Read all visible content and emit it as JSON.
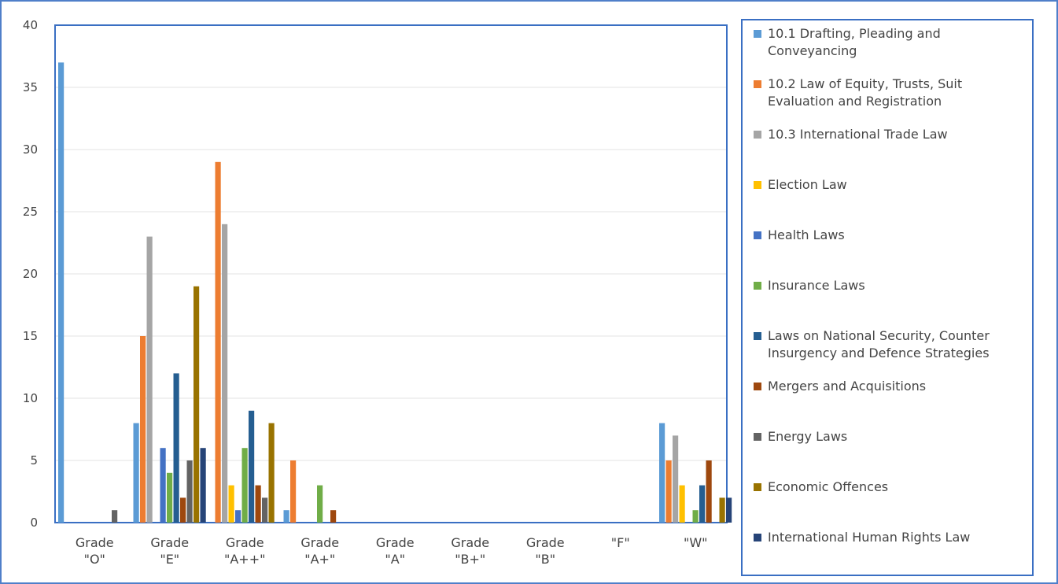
{
  "chart_data": {
    "type": "bar",
    "ylim": [
      0,
      40
    ],
    "yticks": [
      0,
      5,
      10,
      15,
      20,
      25,
      30,
      35,
      40
    ],
    "grid": true,
    "legend_position": "right",
    "categories": [
      [
        "Grade",
        "\"O\""
      ],
      [
        "Grade",
        "\"E\""
      ],
      [
        "Grade",
        "\"A++\""
      ],
      [
        "Grade",
        "\"A+\""
      ],
      [
        "Grade",
        "\"A\""
      ],
      [
        "Grade",
        "\"B+\""
      ],
      [
        "Grade",
        "\"B\""
      ],
      [
        "\"F\""
      ],
      [
        "\"W\""
      ]
    ],
    "series": [
      {
        "name": "10.1 Drafting, Pleading and Conveyancing",
        "color": "#5b9bd5",
        "values": [
          37,
          8,
          0,
          1,
          0,
          0,
          0,
          0,
          8
        ]
      },
      {
        "name": "10.2 Law of Equity, Trusts, Suit Evaluation and Registration",
        "color": "#ed7d31",
        "values": [
          0,
          15,
          29,
          5,
          0,
          0,
          0,
          0,
          5
        ]
      },
      {
        "name": "10.3 International Trade Law",
        "color": "#a5a5a5",
        "values": [
          0,
          23,
          24,
          0,
          0,
          0,
          0,
          0,
          7
        ]
      },
      {
        "name": "Election Law",
        "color": "#ffc000",
        "values": [
          0,
          0,
          3,
          0,
          0,
          0,
          0,
          0,
          3
        ]
      },
      {
        "name": "Health Laws",
        "color": "#4472c4",
        "values": [
          0,
          6,
          1,
          0,
          0,
          0,
          0,
          0,
          0
        ]
      },
      {
        "name": "Insurance Laws",
        "color": "#70ad47",
        "values": [
          0,
          4,
          6,
          3,
          0,
          0,
          0,
          0,
          1
        ]
      },
      {
        "name": "Laws on National Security, Counter Insurgency and Defence Strategies",
        "color": "#255e91",
        "values": [
          0,
          12,
          9,
          0,
          0,
          0,
          0,
          0,
          3
        ]
      },
      {
        "name": "Mergers and Acquisitions",
        "color": "#9e480e",
        "values": [
          0,
          2,
          3,
          1,
          0,
          0,
          0,
          0,
          5
        ]
      },
      {
        "name": "Energy Laws",
        "color": "#636363",
        "values": [
          1,
          5,
          2,
          0,
          0,
          0,
          0,
          0,
          0
        ]
      },
      {
        "name": "Economic Offences",
        "color": "#997300",
        "values": [
          0,
          19,
          8,
          0,
          0,
          0,
          0,
          0,
          2
        ]
      },
      {
        "name": "International Human Rights Law",
        "color": "#264478",
        "values": [
          0,
          6,
          0,
          0,
          0,
          0,
          0,
          0,
          2
        ]
      }
    ]
  }
}
